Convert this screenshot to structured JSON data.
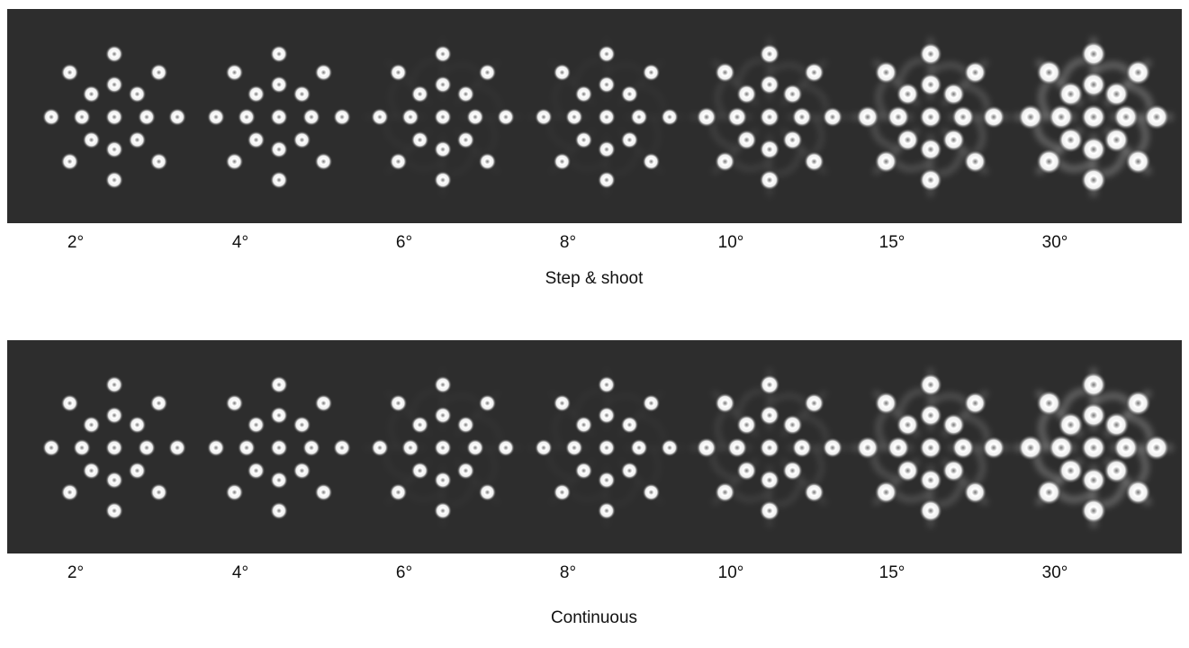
{
  "rows": [
    {
      "labels": [
        "2°",
        "4°",
        "6°",
        "8°",
        "10°",
        "15°",
        "30°"
      ],
      "caption": "Step & shoot"
    },
    {
      "labels": [
        "2°",
        "4°",
        "6°",
        "8°",
        "10°",
        "15°",
        "30°"
      ],
      "caption": "Continuous"
    }
  ]
}
